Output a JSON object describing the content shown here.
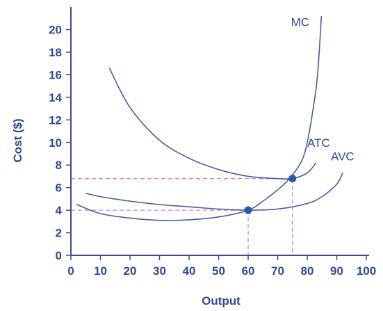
{
  "chart_data": {
    "type": "line",
    "xlabel": "Output",
    "ylabel": "Cost ($)",
    "xlim": [
      0,
      100
    ],
    "ylim": [
      0,
      20
    ],
    "x_ticks": [
      0,
      10,
      20,
      30,
      40,
      50,
      60,
      70,
      80,
      90,
      100
    ],
    "y_ticks": [
      0,
      2,
      4,
      6,
      8,
      10,
      12,
      14,
      16,
      18,
      20
    ],
    "grid": false,
    "series": [
      {
        "name": "MC",
        "x": [
          2,
          10,
          20,
          30,
          40,
          50,
          60,
          65,
          70,
          74,
          78,
          80,
          82,
          83.5,
          84.8
        ],
        "y": [
          4.5,
          3.7,
          3.3,
          3.1,
          3.15,
          3.4,
          4.0,
          4.8,
          5.8,
          6.8,
          8.3,
          10.0,
          13.0,
          16.0,
          21.2
        ]
      },
      {
        "name": "ATC",
        "x": [
          13,
          20,
          30,
          40,
          50,
          60,
          70,
          75,
          80,
          83
        ],
        "y": [
          16.6,
          13.1,
          10.2,
          8.6,
          7.6,
          7.0,
          6.8,
          6.8,
          7.3,
          8.2
        ]
      },
      {
        "name": "AVC",
        "x": [
          5,
          10,
          20,
          30,
          40,
          50,
          60,
          70,
          80,
          85,
          90,
          92
        ],
        "y": [
          5.5,
          5.2,
          4.8,
          4.5,
          4.3,
          4.1,
          4.0,
          4.1,
          4.6,
          5.2,
          6.3,
          7.3
        ]
      }
    ],
    "points": [
      {
        "x": 60,
        "y": 4.0
      },
      {
        "x": 75,
        "y": 6.8
      }
    ],
    "reference_lines": [
      {
        "from": [
          0,
          6.8
        ],
        "to": [
          75,
          6.8
        ],
        "to_x_axis": 75
      },
      {
        "from": [
          0,
          4.0
        ],
        "to": [
          60,
          4.0
        ],
        "to_x_axis": 60
      }
    ],
    "labels": [
      {
        "text": "MC",
        "x": 74.5,
        "y": 20.3
      },
      {
        "text": "ATC",
        "x": 80,
        "y": 9.6
      },
      {
        "text": "AVC",
        "x": 88,
        "y": 8.4
      }
    ],
    "colors": {
      "curve": "#4a5a9f",
      "axis": "#3d4a8f",
      "text": "#2e4b8f",
      "point": "#2b57a6",
      "reference": "#d27fc6"
    }
  }
}
